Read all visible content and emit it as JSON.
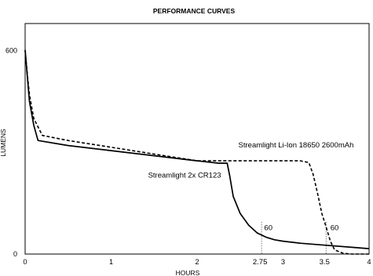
{
  "chart_data": {
    "type": "line",
    "title": "PERFORMANCE CURVES",
    "xlabel": "HOURS",
    "ylabel": "LUMENS",
    "xlim": [
      0,
      4
    ],
    "ylim": [
      0,
      680
    ],
    "grid": false,
    "legend": "none",
    "y_ticks": [
      {
        "value": 0,
        "label": "0"
      },
      {
        "value": 600,
        "label": "600"
      }
    ],
    "x_ticks": [
      {
        "value": 0,
        "label": "0"
      },
      {
        "value": 1,
        "label": "1"
      },
      {
        "value": 2,
        "label": "2"
      },
      {
        "value": 3,
        "label": "3"
      },
      {
        "value": 4,
        "label": "4"
      }
    ],
    "x_markers": [
      {
        "value": 2.75,
        "label": "2.75"
      },
      {
        "value": 3.5,
        "label": "3.5"
      }
    ],
    "series": [
      {
        "name": "Streamlight 2x CR123",
        "style": "solid",
        "color": "#000000",
        "x": [
          0,
          0.02,
          0.05,
          0.1,
          0.15,
          0.5,
          1.0,
          1.5,
          2.0,
          2.25,
          2.35,
          2.38,
          2.42,
          2.5,
          2.6,
          2.7,
          2.8,
          2.9,
          3.0,
          3.2,
          3.5,
          3.8,
          4.0
        ],
        "y": [
          602,
          540,
          450,
          380,
          335,
          320,
          305,
          290,
          275,
          268,
          268,
          230,
          170,
          120,
          85,
          62,
          50,
          42,
          38,
          32,
          26,
          20,
          16
        ]
      },
      {
        "name": "Streamlight Li-Ion 18650 2600mAh",
        "style": "dashed",
        "color": "#000000",
        "x": [
          0,
          0.02,
          0.05,
          0.1,
          0.2,
          0.5,
          1.0,
          1.5,
          2.0,
          2.5,
          3.0,
          3.2,
          3.3,
          3.35,
          3.4,
          3.45,
          3.5,
          3.55,
          3.6,
          3.7,
          3.8,
          4.0
        ],
        "y": [
          600,
          545,
          470,
          400,
          350,
          335,
          315,
          295,
          275,
          275,
          275,
          275,
          270,
          235,
          180,
          120,
          80,
          38,
          12,
          2,
          0,
          0
        ]
      }
    ],
    "annotations": [
      {
        "text": "Streamlight Li-Ion 18650 2600mAh",
        "x": 2.48,
        "y": 315
      },
      {
        "text": "Streamlight 2x CR123",
        "x": 1.43,
        "y": 225
      },
      {
        "text": "60",
        "x": 2.78,
        "y": 70
      },
      {
        "text": "60",
        "x": 3.55,
        "y": 70
      }
    ]
  }
}
